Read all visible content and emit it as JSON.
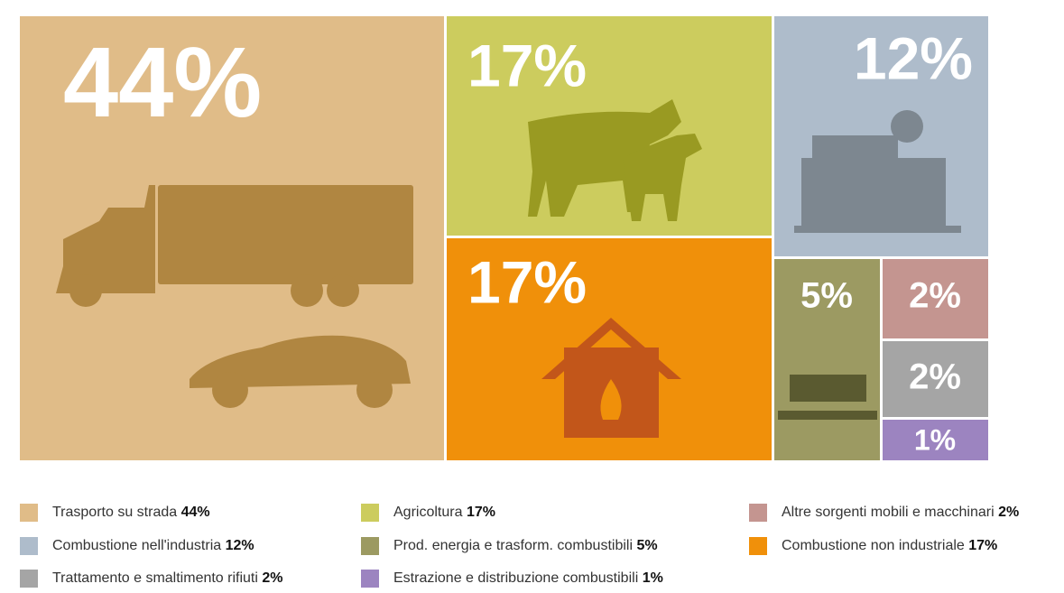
{
  "chart_data": {
    "type": "treemap",
    "categories": [
      "Trasporto su strada",
      "Agricoltura",
      "Combustione nell'industria",
      "Combustione non industriale",
      "Prod. energia e trasform. combustibili",
      "Altre sorgenti mobili e macchinari",
      "Trattamento e smaltimento rifiuti",
      "Estrazione e distribuzione combustibili"
    ],
    "values": [
      44,
      17,
      12,
      17,
      5,
      2,
      2,
      1
    ],
    "value_labels": [
      "44%",
      "17%",
      "12%",
      "17%",
      "5%",
      "2%",
      "2%",
      "1%"
    ],
    "colors": [
      "#e0bc88",
      "#cccc5e",
      "#aebccb",
      "#f0900a",
      "#9c9a62",
      "#c49590",
      "#a5a5a5",
      "#9c84c0"
    ]
  }
}
